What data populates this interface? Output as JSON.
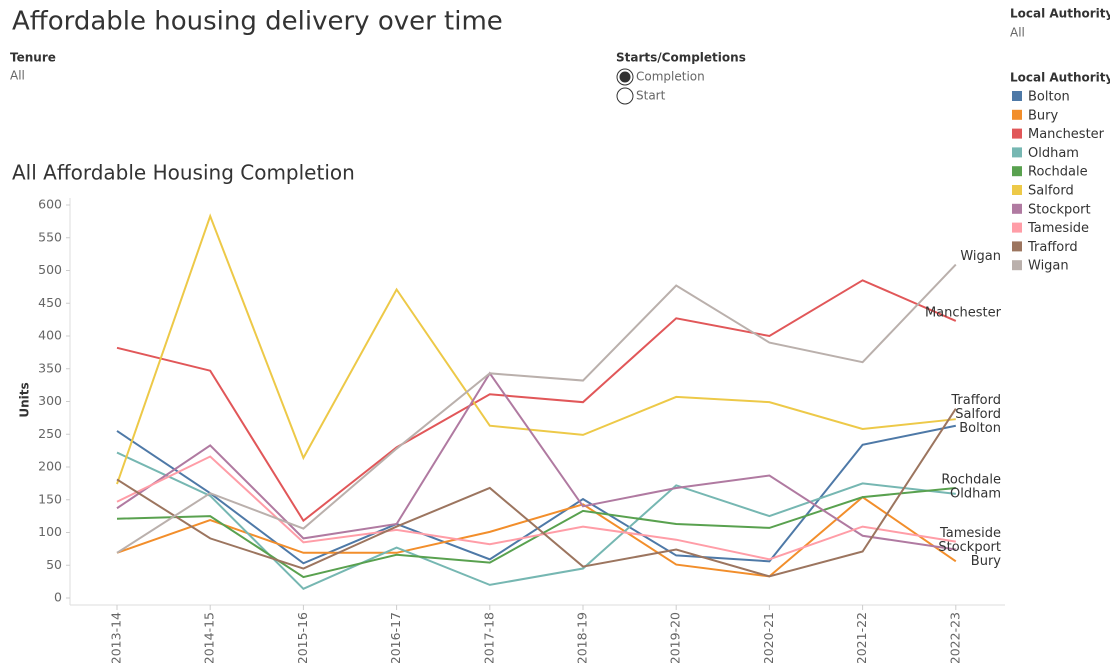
{
  "header": {
    "title": "Affordable housing delivery over time"
  },
  "filters": {
    "tenure": {
      "label": "Tenure",
      "value": "All"
    },
    "starts_completions": {
      "label": "Starts/Completions",
      "options": [
        "Completion",
        "Start"
      ]
    },
    "local_authority": {
      "label": "Local Authority",
      "value": "All"
    }
  },
  "chart_data": {
    "type": "line",
    "title": "All Affordable Housing Completion",
    "y_label": "Units",
    "legend_title": "Local Authority",
    "legend": "right",
    "categories": [
      "2013-14",
      "2014-15",
      "2015-16",
      "2016-17",
      "2017-18",
      "2018-19",
      "2019-20",
      "2020-21",
      "2021-22",
      "2022-23"
    ],
    "ylim": [
      0,
      600
    ],
    "yticks": [
      0,
      50,
      100,
      150,
      200,
      250,
      300,
      350,
      400,
      450,
      500,
      550,
      600
    ],
    "series": [
      {
        "name": "Bolton",
        "color": "#4e79a7",
        "values": [
          255,
          160,
          53,
          113,
          59,
          151,
          65,
          56,
          234,
          263
        ]
      },
      {
        "name": "Bury",
        "color": "#f28e2b",
        "values": [
          69,
          119,
          69,
          69,
          101,
          143,
          51,
          33,
          154,
          56
        ]
      },
      {
        "name": "Manchester",
        "color": "#e15759",
        "values": [
          382,
          347,
          118,
          230,
          311,
          299,
          427,
          400,
          485,
          423
        ]
      },
      {
        "name": "Oldham",
        "color": "#76b7b2",
        "values": [
          222,
          156,
          14,
          77,
          20,
          45,
          172,
          125,
          175,
          159
        ]
      },
      {
        "name": "Rochdale",
        "color": "#59a14f",
        "values": [
          121,
          125,
          32,
          66,
          54,
          133,
          113,
          107,
          154,
          168
        ]
      },
      {
        "name": "Salford",
        "color": "#edc948",
        "values": [
          174,
          583,
          214,
          471,
          263,
          249,
          307,
          299,
          258,
          273
        ]
      },
      {
        "name": "Stockport",
        "color": "#b07aa1",
        "values": [
          137,
          233,
          91,
          113,
          343,
          140,
          168,
          187,
          95,
          74
        ]
      },
      {
        "name": "Tameside",
        "color": "#ff9da7",
        "values": [
          147,
          216,
          85,
          104,
          82,
          109,
          89,
          59,
          109,
          86
        ]
      },
      {
        "name": "Trafford",
        "color": "#9c755f",
        "values": [
          181,
          91,
          45,
          109,
          168,
          48,
          74,
          33,
          71,
          289
        ]
      },
      {
        "name": "Wigan",
        "color": "#bab0ac",
        "values": [
          69,
          160,
          106,
          228,
          343,
          332,
          477,
          390,
          360,
          509
        ]
      }
    ]
  }
}
